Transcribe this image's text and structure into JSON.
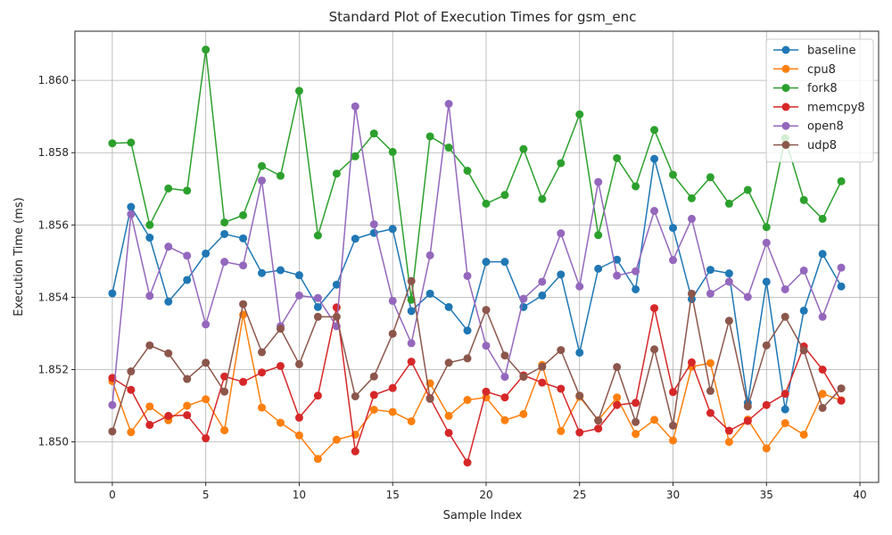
{
  "chart_data": {
    "type": "line",
    "title": "Standard Plot of Execution Times for gsm_enc",
    "xlabel": "Sample Index",
    "ylabel": "Execution Time (ms)",
    "xlim": [
      -2,
      41
    ],
    "ylim": [
      1.84888,
      1.86136
    ],
    "xticks": [
      0,
      5,
      10,
      15,
      20,
      25,
      30,
      35,
      40
    ],
    "yticks": [
      1.85,
      1.852,
      1.854,
      1.856,
      1.858,
      1.86
    ],
    "ytick_labels": [
      "1.850",
      "1.852",
      "1.854",
      "1.856",
      "1.858",
      "1.860"
    ],
    "grid": true,
    "legend_position": "top-right",
    "x": [
      0,
      1,
      2,
      3,
      4,
      5,
      6,
      7,
      8,
      9,
      10,
      11,
      12,
      13,
      14,
      15,
      16,
      17,
      18,
      19,
      20,
      21,
      22,
      23,
      24,
      25,
      26,
      27,
      28,
      29,
      30,
      31,
      32,
      33,
      34,
      35,
      36,
      37,
      38,
      39
    ],
    "series": [
      {
        "name": "baseline",
        "color": "#1f77b4",
        "values": [
          1.85411,
          1.8565,
          1.85565,
          1.85388,
          1.85448,
          1.85521,
          1.85575,
          1.85563,
          1.85467,
          1.85475,
          1.85461,
          1.85373,
          1.85435,
          1.85562,
          1.85578,
          1.85589,
          1.85362,
          1.8541,
          1.85373,
          1.85308,
          1.85498,
          1.85498,
          1.85373,
          1.85405,
          1.85463,
          1.85247,
          1.85479,
          1.85504,
          1.85422,
          1.85783,
          1.85592,
          1.85395,
          1.85476,
          1.85466,
          1.85108,
          1.85443,
          1.8509,
          1.85363,
          1.8552,
          1.8543
        ]
      },
      {
        "name": "cpu8",
        "color": "#ff7f0e",
        "values": [
          1.85168,
          1.85027,
          1.85098,
          1.8506,
          1.851,
          1.85118,
          1.85032,
          1.85352,
          1.85095,
          1.85053,
          1.85018,
          1.84953,
          1.85006,
          1.8502,
          1.85089,
          1.85083,
          1.85057,
          1.85162,
          1.85072,
          1.85116,
          1.85123,
          1.8506,
          1.85077,
          1.85213,
          1.8503,
          1.85125,
          1.8506,
          1.85123,
          1.85022,
          1.85061,
          1.85004,
          1.85208,
          1.85218,
          1.85,
          1.85062,
          1.84982,
          1.85052,
          1.8502,
          1.85133,
          1.85115
        ]
      },
      {
        "name": "fork8",
        "color": "#2ca02c",
        "values": [
          1.85826,
          1.85828,
          1.856,
          1.85701,
          1.85695,
          1.86085,
          1.85607,
          1.85627,
          1.85763,
          1.85736,
          1.85971,
          1.85571,
          1.85742,
          1.8579,
          1.85853,
          1.85802,
          1.85393,
          1.85845,
          1.85814,
          1.8575,
          1.85659,
          1.85683,
          1.8581,
          1.85672,
          1.85771,
          1.85906,
          1.85572,
          1.85785,
          1.85707,
          1.85863,
          1.85739,
          1.85674,
          1.85732,
          1.85659,
          1.85697,
          1.85594,
          1.8584,
          1.85669,
          1.85617,
          1.85721
        ]
      },
      {
        "name": "memcpy8",
        "color": "#d62728",
        "values": [
          1.85177,
          1.85144,
          1.85047,
          1.85072,
          1.85074,
          1.8501,
          1.85181,
          1.85166,
          1.85192,
          1.8521,
          1.85067,
          1.85128,
          1.85372,
          1.84974,
          1.8513,
          1.85149,
          1.85222,
          1.85121,
          1.85025,
          1.84943,
          1.85139,
          1.85123,
          1.85184,
          1.85164,
          1.85147,
          1.85026,
          1.85037,
          1.85102,
          1.85108,
          1.8537,
          1.85138,
          1.8522,
          1.8508,
          1.85031,
          1.85058,
          1.85102,
          1.85133,
          1.85264,
          1.852,
          1.85114
        ]
      },
      {
        "name": "open8",
        "color": "#9467bd",
        "values": [
          1.85102,
          1.8563,
          1.85404,
          1.8554,
          1.85515,
          1.85325,
          1.85498,
          1.85488,
          1.85723,
          1.8532,
          1.85405,
          1.85398,
          1.8532,
          1.85928,
          1.85602,
          1.8539,
          1.85273,
          1.85516,
          1.85935,
          1.85459,
          1.85266,
          1.8518,
          1.85396,
          1.85443,
          1.85577,
          1.8543,
          1.85719,
          1.8546,
          1.85472,
          1.85639,
          1.85503,
          1.85617,
          1.8541,
          1.85443,
          1.85401,
          1.85551,
          1.85422,
          1.85474,
          1.85346,
          1.85482
        ]
      },
      {
        "name": "udp8",
        "color": "#8c564b",
        "values": [
          1.85029,
          1.85195,
          1.85267,
          1.85245,
          1.85174,
          1.85219,
          1.85139,
          1.85381,
          1.85248,
          1.85313,
          1.85215,
          1.85346,
          1.85346,
          1.85126,
          1.85181,
          1.85299,
          1.85445,
          1.85119,
          1.85219,
          1.85231,
          1.85365,
          1.85239,
          1.8518,
          1.85208,
          1.85254,
          1.85128,
          1.85059,
          1.85207,
          1.85055,
          1.85256,
          1.85045,
          1.8541,
          1.85141,
          1.85335,
          1.85098,
          1.85267,
          1.85346,
          1.85253,
          1.85094,
          1.85148
        ]
      }
    ]
  }
}
